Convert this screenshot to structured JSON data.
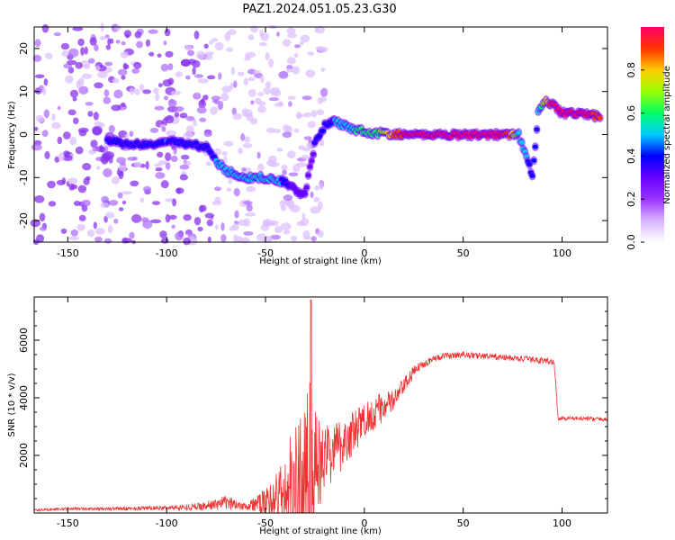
{
  "title": "PAZ1.2024.051.05.23.G30",
  "chart_data": [
    {
      "type": "heatmap",
      "title": "PAZ1.2024.051.05.23.G30",
      "xlabel": "Height of straight line (km)",
      "ylabel": "Frequency (Hz)",
      "xlim": [
        -167,
        123
      ],
      "ylim": [
        -25,
        25
      ],
      "xticks": [
        -150,
        -100,
        -50,
        0,
        50,
        100
      ],
      "yticks": [
        -20,
        -10,
        0,
        10,
        20
      ],
      "ridge": {
        "x": [
          -130,
          -120,
          -110,
          -100,
          -90,
          -80,
          -75,
          -70,
          -65,
          -60,
          -55,
          -50,
          -45,
          -40,
          -35,
          -30,
          -25,
          -20,
          -15,
          -10,
          -5,
          0,
          5,
          10,
          15,
          20,
          30,
          40,
          50,
          60,
          70,
          75,
          78,
          82,
          85,
          88,
          92,
          95,
          100,
          110,
          120
        ],
        "freq": [
          -1.5,
          -2,
          -2.5,
          -1.5,
          -2,
          -3,
          -6,
          -8.5,
          -9,
          -10,
          -10,
          -10,
          -10.5,
          -11,
          -13,
          -14,
          -2,
          2,
          3,
          2,
          1,
          1,
          0,
          0.5,
          0,
          0,
          0,
          0,
          0,
          0,
          0,
          0,
          0,
          -5,
          -10,
          5,
          8,
          7,
          5,
          5,
          4
        ],
        "amplitude": [
          0.35,
          0.4,
          0.35,
          0.45,
          0.4,
          0.35,
          0.45,
          0.5,
          0.45,
          0.5,
          0.55,
          0.5,
          0.5,
          0.4,
          0.3,
          0.3,
          0.35,
          0.4,
          0.45,
          0.5,
          0.55,
          0.55,
          0.6,
          0.7,
          0.85,
          0.95,
          1.0,
          1.0,
          1.0,
          1.0,
          0.95,
          0.8,
          0.5,
          0.45,
          0.4,
          0.45,
          0.8,
          0.95,
          1.0,
          1.0,
          0.9
        ]
      },
      "colorbar": {
        "label": "Normalized spectral amplitude",
        "range": [
          0,
          1
        ],
        "ticks": [
          0.0,
          0.2,
          0.4,
          0.6,
          0.8
        ],
        "tick_labels": [
          "0.0",
          "0.2",
          "0.4",
          "0.6",
          "0.8"
        ],
        "colors": [
          "#ffffff",
          "#d9b3ff",
          "#9933ff",
          "#6600ff",
          "#0000ff",
          "#00ccff",
          "#00ff66",
          "#99ff00",
          "#ffcc00",
          "#ff3300",
          "#ff0066"
        ]
      }
    },
    {
      "type": "line",
      "xlabel": "Height of straight line (km)",
      "ylabel": "SNR (10 * v/v)",
      "xlim": [
        -167,
        123
      ],
      "ylim": [
        0,
        7500
      ],
      "xticks": [
        -150,
        -100,
        -50,
        0,
        50,
        100
      ],
      "yticks": [
        2000,
        4000,
        6000
      ],
      "color": "#ee3333",
      "envelope": {
        "x": [
          -167,
          -150,
          -120,
          -100,
          -90,
          -80,
          -75,
          -70,
          -65,
          -60,
          -55,
          -50,
          -45,
          -40,
          -35,
          -32,
          -30,
          -28,
          -26,
          -24,
          -22,
          -20,
          -15,
          -10,
          -5,
          0,
          5,
          10,
          15,
          20,
          25,
          30,
          35,
          40,
          50,
          60,
          70,
          80,
          90,
          96,
          98,
          100,
          110,
          123
        ],
        "base": [
          100,
          150,
          150,
          180,
          200,
          250,
          300,
          350,
          300,
          250,
          300,
          350,
          500,
          700,
          800,
          900,
          1000,
          1000,
          1200,
          1500,
          1700,
          1900,
          2200,
          2500,
          2800,
          3200,
          3500,
          3700,
          3900,
          4400,
          4900,
          5200,
          5350,
          5450,
          5500,
          5450,
          5400,
          5350,
          5300,
          5250,
          3300,
          3300,
          3280,
          3250
        ],
        "noise": [
          40,
          50,
          60,
          80,
          100,
          150,
          200,
          250,
          200,
          150,
          300,
          500,
          900,
          1500,
          2400,
          3200,
          3300,
          4000,
          3000,
          2000,
          1500,
          1200,
          1000,
          900,
          800,
          700,
          600,
          500,
          400,
          300,
          200,
          150,
          120,
          110,
          110,
          110,
          110,
          110,
          110,
          110,
          80,
          80,
          70,
          70
        ]
      },
      "spike": {
        "x": -27,
        "y": 7400
      }
    }
  ]
}
